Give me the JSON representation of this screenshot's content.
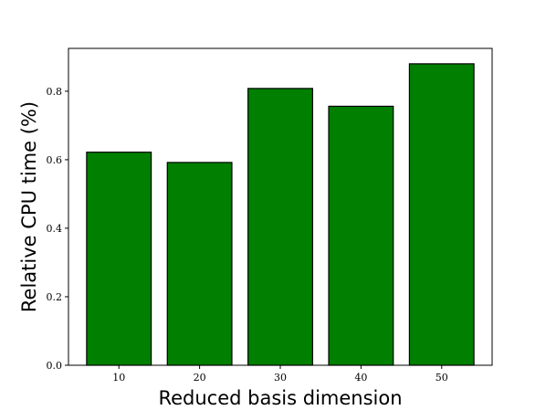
{
  "chart_data": {
    "type": "bar",
    "categories": [
      "10",
      "20",
      "30",
      "40",
      "50"
    ],
    "values": [
      0.622,
      0.592,
      0.808,
      0.756,
      0.88
    ],
    "title": "",
    "xlabel": "Reduced basis dimension",
    "ylabel": "Relative CPU time (%)",
    "ylim": [
      0,
      0.925
    ],
    "yticks": [
      "0.0",
      "0.2",
      "0.4",
      "0.6",
      "0.8"
    ],
    "grid": false,
    "colors": {
      "bar_fill": "#007f00",
      "bar_edge": "#000000",
      "axis": "#000000"
    }
  }
}
